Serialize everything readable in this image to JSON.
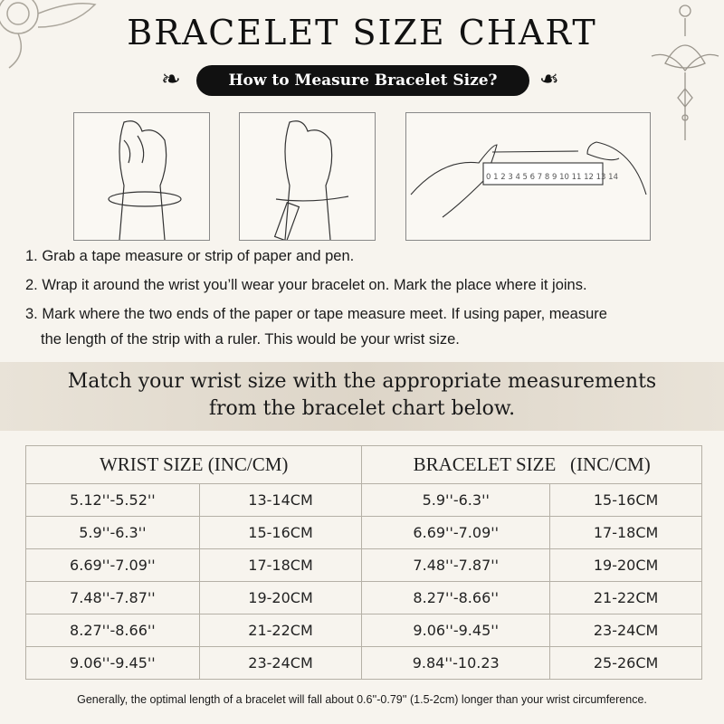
{
  "title": "BRACELET SIZE CHART",
  "subtitle": "How to Measure Bracelet Size?",
  "ruler_numbers": "0 1 2 3 4 5 6 7 8 9 10 11 12 13 14",
  "steps": [
    "1. Grab a tape measure or strip of paper and pen.",
    "2. Wrap it around the wrist you’ll wear your bracelet on. Mark the place where it joins.",
    "3. Mark where the two ends of the paper or tape measure meet. If using paper, measure",
    "the length of the strip with a ruler. This would be your wrist size."
  ],
  "band": {
    "line1": "Match your wrist size with the appropriate measurements",
    "line2": "from the bracelet chart below."
  },
  "table": {
    "headers": [
      "WRIST SIZE (INC/CM)",
      "BRACELET SIZE   (INC/CM)"
    ],
    "rows": [
      [
        "5.12''-5.52''",
        "13-14CM",
        "5.9''-6.3''",
        "15-16CM"
      ],
      [
        "5.9''-6.3''",
        "15-16CM",
        "6.69''-7.09''",
        "17-18CM"
      ],
      [
        "6.69''-7.09''",
        "17-18CM",
        "7.48''-7.87''",
        "19-20CM"
      ],
      [
        "7.48''-7.87''",
        "19-20CM",
        "8.27''-8.66''",
        "21-22CM"
      ],
      [
        "8.27''-8.66''",
        "21-22CM",
        "9.06''-9.45''",
        "23-24CM"
      ],
      [
        "9.06''-9.45''",
        "23-24CM",
        "9.84''-10.23",
        "25-26CM"
      ]
    ]
  },
  "note": "Generally, the optimal length of a bracelet will fall about 0.6''-0.79'' (1.5-2cm) longer than your wrist circumference."
}
